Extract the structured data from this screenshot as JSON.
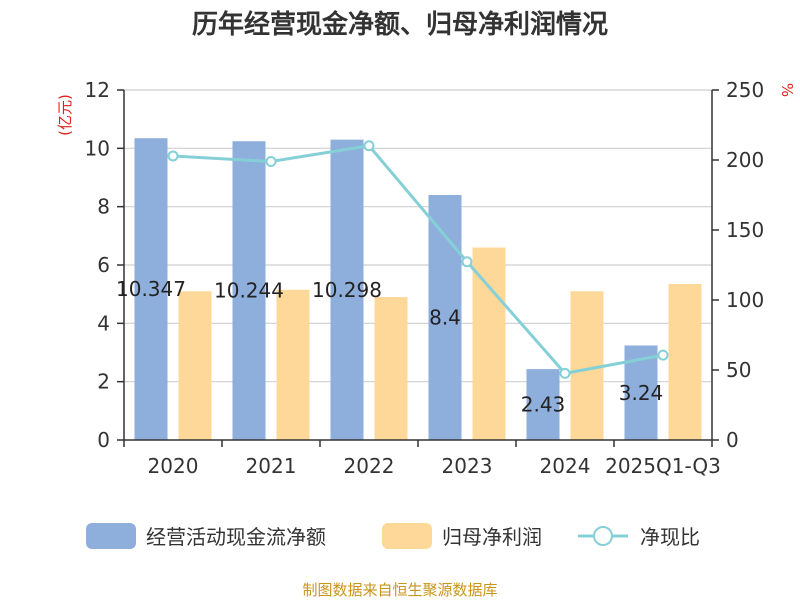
{
  "chart_data": {
    "type": "bar",
    "title": "历年经营现金净额、归母净利润情况",
    "categories": [
      "2020",
      "2021",
      "2022",
      "2023",
      "2024",
      "2025Q1-Q3"
    ],
    "series": [
      {
        "name": "经营活动现金流净额",
        "type": "bar",
        "axis": "left",
        "color": "#8eaedc",
        "values": [
          10.347,
          10.244,
          10.298,
          8.4,
          2.43,
          3.24
        ],
        "labels": [
          "10.347",
          "10.244",
          "10.298",
          "8.4",
          "2.43",
          "3.24"
        ]
      },
      {
        "name": "归母净利润",
        "type": "bar",
        "axis": "left",
        "color": "#fdd899",
        "values": [
          5.1,
          5.15,
          4.9,
          6.6,
          5.1,
          5.35
        ]
      },
      {
        "name": "净现比",
        "type": "line",
        "axis": "right",
        "color": "#85d0d6",
        "values": [
          202.9,
          198.9,
          210.2,
          127.3,
          47.6,
          60.6
        ]
      }
    ],
    "y_left": {
      "label": "(亿元)",
      "min": 0,
      "max": 12,
      "ticks": [
        0,
        2,
        4,
        6,
        8,
        10,
        12
      ]
    },
    "y_right": {
      "label": "%",
      "min": 0,
      "max": 250,
      "ticks": [
        0,
        50,
        100,
        150,
        200,
        250
      ]
    },
    "grid": true,
    "legend_position": "bottom"
  },
  "source_text": "制图数据来自恒生聚源数据库"
}
